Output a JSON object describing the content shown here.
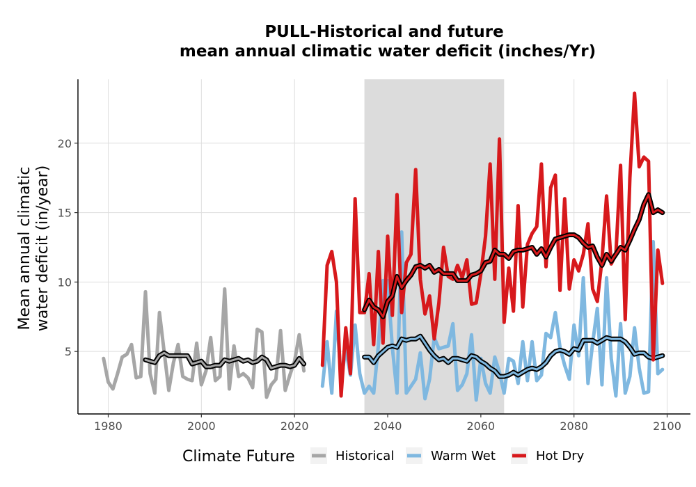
{
  "chart_data": {
    "type": "line",
    "title": "PULL-Historical and future",
    "subtitle": "mean annual climatic water deficit (inches/Yr)",
    "ylabel_line1": "Mean annual climatic",
    "ylabel_line2": "water deficit (in/year)",
    "xlabel": "",
    "xlim": [
      1973.5,
      2105
    ],
    "ylim": [
      0.5,
      24.6
    ],
    "x_ticks": [
      1980,
      2000,
      2020,
      2040,
      2060,
      2080,
      2100
    ],
    "y_ticks": [
      5,
      10,
      15,
      20
    ],
    "x_tick_labels": [
      "1980",
      "2000",
      "2020",
      "2040",
      "2060",
      "2080",
      "2100"
    ],
    "y_tick_labels": [
      "5",
      "10",
      "15",
      "20"
    ],
    "grid": true,
    "shaded_period": [
      2035,
      2065
    ],
    "legend": {
      "title": "Climate Future",
      "position": "bottom",
      "entries": [
        {
          "label": "Historical",
          "color": "#a6a6a6"
        },
        {
          "label": "Warm Wet",
          "color": "#7fb8e0"
        },
        {
          "label": "Hot Dry",
          "color": "#d7191c"
        }
      ]
    },
    "series": [
      {
        "name": "Historical",
        "color": "#a6a6a6",
        "x": [
          1979,
          1980,
          1981,
          1982,
          1983,
          1984,
          1985,
          1986,
          1987,
          1988,
          1989,
          1990,
          1991,
          1992,
          1993,
          1994,
          1995,
          1996,
          1997,
          1998,
          1999,
          2000,
          2001,
          2002,
          2003,
          2004,
          2005,
          2006,
          2007,
          2008,
          2009,
          2010,
          2011,
          2012,
          2013,
          2014,
          2015,
          2016,
          2017,
          2018,
          2019,
          2020,
          2021,
          2022
        ],
        "y": [
          4.5,
          2.8,
          2.3,
          3.4,
          4.6,
          4.8,
          5.5,
          3.1,
          3.2,
          9.3,
          3.4,
          2.0,
          7.8,
          5.0,
          2.2,
          4.2,
          5.5,
          3.2,
          3.0,
          2.9,
          5.6,
          2.6,
          3.6,
          6.0,
          2.9,
          3.2,
          9.5,
          2.3,
          5.4,
          3.2,
          3.4,
          3.1,
          2.4,
          6.6,
          6.4,
          1.7,
          2.6,
          3.0,
          6.5,
          2.2,
          3.3,
          4.3,
          6.2,
          3.6
        ]
      },
      {
        "name": "Historical",
        "color": "#000000",
        "smoothed": true,
        "x": [
          1988,
          1989,
          1990,
          1991,
          1992,
          1993,
          1994,
          1995,
          1996,
          1997,
          1998,
          1999,
          2000,
          2001,
          2002,
          2003,
          2004,
          2005,
          2006,
          2007,
          2008,
          2009,
          2010,
          2011,
          2012,
          2013,
          2014,
          2015,
          2016,
          2017,
          2018,
          2019,
          2020,
          2021,
          2022
        ],
        "y": [
          4.4,
          4.3,
          4.2,
          4.7,
          4.9,
          4.7,
          4.7,
          4.7,
          4.7,
          4.7,
          4.1,
          4.2,
          4.3,
          3.9,
          3.9,
          4.0,
          4.0,
          4.4,
          4.3,
          4.4,
          4.5,
          4.3,
          4.4,
          4.2,
          4.3,
          4.6,
          4.4,
          3.8,
          3.9,
          4.0,
          4.0,
          3.9,
          4.0,
          4.5,
          4.1
        ]
      },
      {
        "name": "Warm Wet",
        "color": "#7fb8e0",
        "x": [
          2026,
          2027,
          2028,
          2029,
          2030,
          2031,
          2032,
          2033,
          2034,
          2035,
          2036,
          2037,
          2038,
          2039,
          2040,
          2041,
          2042,
          2043,
          2044,
          2045,
          2046,
          2047,
          2048,
          2049,
          2050,
          2051,
          2052,
          2053,
          2054,
          2055,
          2056,
          2057,
          2058,
          2059,
          2060,
          2061,
          2062,
          2063,
          2064,
          2065,
          2066,
          2067,
          2068,
          2069,
          2070,
          2071,
          2072,
          2073,
          2074,
          2075,
          2076,
          2077,
          2078,
          2079,
          2080,
          2081,
          2082,
          2083,
          2084,
          2085,
          2086,
          2087,
          2088,
          2089,
          2090,
          2091,
          2092,
          2093,
          2094,
          2095,
          2096,
          2097,
          2098,
          2099
        ],
        "y": [
          2.5,
          5.7,
          2.0,
          7.9,
          2.9,
          5.2,
          3.3,
          6.9,
          3.4,
          2.0,
          2.5,
          2.0,
          5.4,
          10.1,
          10.1,
          5.3,
          2.0,
          13.6,
          2.0,
          2.5,
          3.0,
          4.9,
          1.6,
          3.0,
          6.0,
          5.2,
          5.3,
          5.4,
          7.0,
          2.2,
          2.6,
          3.4,
          6.2,
          1.5,
          4.5,
          2.7,
          2.0,
          4.6,
          3.5,
          2.0,
          4.5,
          4.3,
          2.7,
          5.7,
          2.9,
          5.7,
          2.9,
          3.3,
          6.3,
          6.0,
          7.8,
          5.3,
          4.0,
          3.0,
          6.9,
          4.7,
          10.3,
          2.7,
          5.6,
          8.1,
          2.6,
          10.3,
          4.5,
          1.8,
          7.0,
          2.0,
          3.2,
          6.7,
          3.8,
          2.0,
          2.1,
          12.9,
          3.4,
          3.7
        ]
      },
      {
        "name": "Warm Wet",
        "color": "#000000",
        "smoothed": true,
        "x": [
          2035,
          2036,
          2037,
          2038,
          2039,
          2040,
          2041,
          2042,
          2043,
          2044,
          2045,
          2046,
          2047,
          2048,
          2049,
          2050,
          2051,
          2052,
          2053,
          2054,
          2055,
          2056,
          2057,
          2058,
          2059,
          2060,
          2061,
          2062,
          2063,
          2064,
          2065,
          2066,
          2067,
          2068,
          2069,
          2070,
          2071,
          2072,
          2073,
          2074,
          2075,
          2076,
          2077,
          2078,
          2079,
          2080,
          2081,
          2082,
          2083,
          2084,
          2085,
          2086,
          2087,
          2088,
          2089,
          2090,
          2091,
          2092,
          2093,
          2094,
          2095,
          2096,
          2097,
          2098,
          2099
        ],
        "y": [
          4.6,
          4.6,
          4.2,
          4.7,
          5.0,
          5.3,
          5.4,
          5.3,
          5.9,
          5.8,
          5.9,
          5.9,
          6.1,
          5.6,
          5.1,
          4.7,
          4.4,
          4.5,
          4.2,
          4.5,
          4.5,
          4.4,
          4.3,
          4.7,
          4.6,
          4.3,
          4.1,
          3.8,
          3.6,
          3.2,
          3.2,
          3.3,
          3.5,
          3.3,
          3.5,
          3.7,
          3.8,
          3.7,
          3.9,
          4.2,
          4.7,
          5.0,
          5.1,
          5.0,
          4.8,
          5.2,
          5.1,
          5.8,
          5.8,
          5.8,
          5.6,
          5.8,
          6.0,
          5.9,
          5.9,
          5.9,
          5.7,
          5.3,
          4.8,
          4.9,
          4.9,
          4.6,
          4.5,
          4.6,
          4.7
        ]
      },
      {
        "name": "Hot Dry",
        "color": "#d7191c",
        "x": [
          2026,
          2027,
          2028,
          2029,
          2030,
          2031,
          2032,
          2033,
          2034,
          2035,
          2036,
          2037,
          2038,
          2039,
          2040,
          2041,
          2042,
          2043,
          2044,
          2045,
          2046,
          2047,
          2048,
          2049,
          2050,
          2051,
          2052,
          2053,
          2054,
          2055,
          2056,
          2057,
          2058,
          2059,
          2060,
          2061,
          2062,
          2063,
          2064,
          2065,
          2066,
          2067,
          2068,
          2069,
          2070,
          2071,
          2072,
          2073,
          2074,
          2075,
          2076,
          2077,
          2078,
          2079,
          2080,
          2081,
          2082,
          2083,
          2084,
          2085,
          2086,
          2087,
          2088,
          2089,
          2090,
          2091,
          2092,
          2093,
          2094,
          2095,
          2096,
          2097,
          2098,
          2099
        ],
        "y": [
          4.0,
          11.2,
          12.2,
          10.0,
          1.8,
          6.7,
          3.4,
          16.0,
          7.8,
          7.8,
          10.6,
          5.5,
          12.2,
          5.6,
          13.3,
          7.6,
          16.3,
          7.8,
          11.4,
          12.0,
          18.1,
          10.2,
          7.7,
          9.0,
          5.9,
          8.5,
          12.5,
          10.4,
          10.2,
          11.2,
          10.3,
          11.6,
          8.4,
          8.5,
          10.6,
          13.3,
          18.5,
          10.2,
          20.3,
          7.1,
          11.0,
          7.9,
          15.5,
          8.2,
          12.7,
          13.5,
          14.0,
          18.5,
          11.1,
          16.8,
          17.7,
          9.4,
          16.0,
          9.5,
          11.6,
          10.8,
          12.0,
          14.2,
          9.5,
          8.6,
          11.6,
          16.2,
          11.3,
          12.0,
          18.4,
          7.3,
          17.5,
          23.6,
          18.3,
          19.0,
          18.7,
          4.4,
          12.3,
          9.9
        ]
      },
      {
        "name": "Hot Dry",
        "color": "#000000",
        "smoothed": true,
        "x": [
          2035,
          2036,
          2037,
          2038,
          2039,
          2040,
          2041,
          2042,
          2043,
          2044,
          2045,
          2046,
          2047,
          2048,
          2049,
          2050,
          2051,
          2052,
          2053,
          2054,
          2055,
          2056,
          2057,
          2058,
          2059,
          2060,
          2061,
          2062,
          2063,
          2064,
          2065,
          2066,
          2067,
          2068,
          2069,
          2070,
          2071,
          2072,
          2073,
          2074,
          2075,
          2076,
          2077,
          2078,
          2079,
          2080,
          2081,
          2082,
          2083,
          2084,
          2085,
          2086,
          2087,
          2088,
          2089,
          2090,
          2091,
          2092,
          2093,
          2094,
          2095,
          2096,
          2097,
          2098,
          2099
        ],
        "y": [
          8.0,
          8.7,
          8.2,
          8.0,
          7.5,
          8.6,
          9.0,
          10.4,
          9.6,
          10.1,
          10.5,
          11.1,
          11.2,
          11.0,
          11.2,
          10.7,
          10.9,
          10.6,
          10.6,
          10.6,
          10.1,
          10.1,
          10.1,
          10.5,
          10.6,
          10.8,
          11.4,
          11.5,
          12.3,
          12.0,
          12.0,
          11.7,
          12.2,
          12.3,
          12.3,
          12.4,
          12.5,
          12.0,
          12.4,
          11.8,
          12.5,
          13.1,
          13.2,
          13.3,
          13.4,
          13.4,
          13.2,
          12.8,
          12.5,
          12.6,
          11.8,
          11.2,
          12.0,
          11.5,
          12.0,
          12.5,
          12.3,
          13.0,
          13.8,
          14.5,
          15.6,
          16.3,
          15.0,
          15.2,
          15.0
        ]
      }
    ]
  }
}
